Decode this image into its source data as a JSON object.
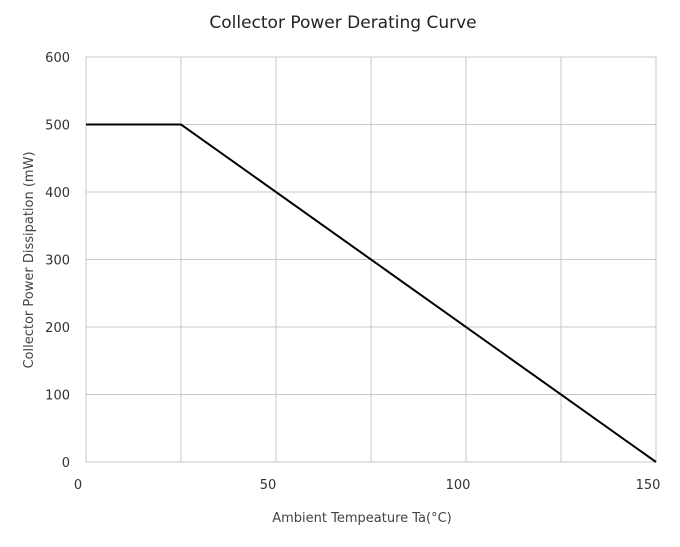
{
  "chart_data": {
    "type": "line",
    "title": "Collector Power Derating Curve",
    "xlabel": "Ambient Tempeature Ta(°C)",
    "ylabel": "Collector Power Dissipation (mW)",
    "xlim": [
      0,
      150
    ],
    "ylim": [
      0,
      600
    ],
    "xticks": [
      0,
      50,
      100,
      150
    ],
    "yticks": [
      0,
      100,
      200,
      300,
      400,
      500,
      600
    ],
    "grid": true,
    "legend": "none",
    "series": [
      {
        "x": [
          0,
          25,
          150
        ],
        "y": [
          500,
          500,
          0
        ],
        "color": "#000000"
      }
    ]
  }
}
